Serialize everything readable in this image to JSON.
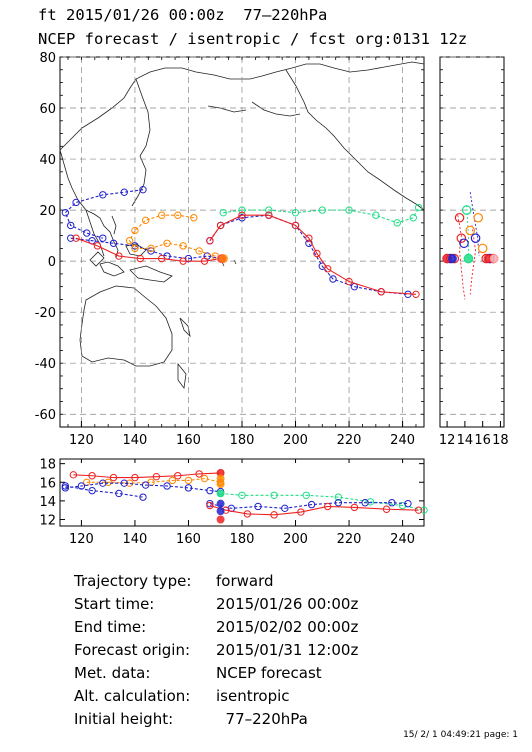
{
  "header": {
    "line1": "ft 2015/01/26 00:00z  77–220hPa",
    "line2": "NCEP forecast / isentropic / fcst org:0131 12z"
  },
  "chart_data": [
    {
      "type": "line",
      "panel": "map",
      "x_ticks": [
        120,
        140,
        160,
        180,
        200,
        220,
        240
      ],
      "y_ticks": [
        80,
        60,
        40,
        20,
        0,
        -20,
        -40,
        -60
      ],
      "xlim": [
        112,
        248
      ],
      "ylim": [
        -65,
        80
      ],
      "grid": true,
      "series": [
        {
          "color": "#2222cc",
          "style": "dashed",
          "x": [
            143,
            136,
            128,
            118,
            114,
            116,
            122,
            128
          ],
          "y": [
            28,
            27,
            26,
            23,
            19,
            14,
            11,
            9
          ]
        },
        {
          "color": "#2222cc",
          "style": "dashed",
          "x": [
            116,
            124,
            132,
            140,
            146,
            152,
            160,
            167,
            172
          ],
          "y": [
            9,
            8,
            7,
            6,
            4,
            2,
            1,
            2,
            1
          ]
        },
        {
          "color": "#ff8800",
          "style": "dashed",
          "x": [
            162,
            156,
            150,
            144,
            140,
            138,
            140,
            146,
            152,
            158,
            164,
            170,
            172
          ],
          "y": [
            17,
            18,
            18,
            16,
            12,
            8,
            5,
            5,
            7,
            6,
            4,
            2,
            1
          ]
        },
        {
          "color": "#ee2222",
          "style": "solid",
          "x": [
            118,
            126,
            134,
            142,
            150,
            158,
            166,
            172
          ],
          "y": [
            9,
            6,
            2,
            1,
            1,
            0,
            0,
            1
          ]
        },
        {
          "color": "#22dd88",
          "style": "dashed",
          "x": [
            173,
            180,
            190,
            200,
            210,
            220,
            230,
            238,
            244,
            246
          ],
          "y": [
            19,
            20,
            20,
            19,
            20,
            20,
            18,
            15,
            17,
            21
          ]
        },
        {
          "color": "#2222cc",
          "style": "dashed",
          "x": [
            168,
            172,
            180,
            190,
            200,
            205,
            210,
            214,
            222,
            232,
            242
          ],
          "y": [
            8,
            14,
            17,
            18,
            14,
            7,
            -2,
            -7,
            -10,
            -12,
            -13
          ]
        },
        {
          "color": "#ee2222",
          "style": "solid",
          "x": [
            168,
            172,
            180,
            190,
            200,
            205,
            208,
            212,
            220,
            232,
            245
          ],
          "y": [
            8,
            14,
            18,
            18,
            14,
            9,
            3,
            -3,
            -8,
            -12,
            -13
          ]
        }
      ]
    },
    {
      "type": "scatter",
      "panel": "right-side",
      "x_ticks": [
        12,
        14,
        16,
        18
      ],
      "xlim": [
        11.2,
        18.4
      ],
      "ylim": [
        -65,
        80
      ],
      "points": [
        {
          "x": 12.0,
          "y": 1,
          "color": "#ee2222"
        },
        {
          "x": 12.4,
          "y": 1,
          "color": "#2222cc"
        },
        {
          "x": 12.8,
          "y": 1,
          "color": "#ee2222"
        },
        {
          "x": 13.4,
          "y": 17,
          "color": "#ee2222"
        },
        {
          "x": 13.6,
          "y": 9,
          "color": "#ee2222"
        },
        {
          "x": 13.9,
          "y": 7,
          "color": "#2222cc"
        },
        {
          "x": 14.2,
          "y": 20,
          "color": "#22dd88"
        },
        {
          "x": 14.4,
          "y": 1,
          "color": "#22dd88"
        },
        {
          "x": 14.6,
          "y": 12,
          "color": "#ff8800"
        },
        {
          "x": 15.2,
          "y": 9,
          "color": "#2222cc"
        },
        {
          "x": 15.5,
          "y": 17,
          "color": "#ff8800"
        },
        {
          "x": 16.0,
          "y": 5,
          "color": "#ff8800"
        },
        {
          "x": 16.4,
          "y": 1,
          "color": "#ee2222"
        },
        {
          "x": 16.8,
          "y": 1,
          "color": "#2222cc"
        },
        {
          "x": 17.2,
          "y": 1,
          "color": "#ee2222"
        }
      ]
    },
    {
      "type": "line",
      "panel": "bottom-altitude",
      "x_ticks": [
        120,
        140,
        160,
        180,
        200,
        220,
        240
      ],
      "y_ticks": [
        18,
        16,
        14,
        12
      ],
      "xlim": [
        112,
        248
      ],
      "ylim": [
        11.3,
        18.5
      ],
      "series": [
        {
          "color": "#ee2222",
          "style": "solid",
          "x": [
            117,
            124,
            132,
            140,
            148,
            156,
            164,
            172
          ],
          "y": [
            16.8,
            16.7,
            16.5,
            16.5,
            16.6,
            16.7,
            16.9,
            17.0
          ]
        },
        {
          "color": "#ff8800",
          "style": "dashed",
          "x": [
            122,
            130,
            138,
            146,
            154,
            160,
            166,
            172
          ],
          "y": [
            16.0,
            16.0,
            15.9,
            16.0,
            16.2,
            16.2,
            16.4,
            16.0
          ]
        },
        {
          "color": "#2222cc",
          "style": "dashed",
          "x": [
            114,
            120,
            128,
            136,
            144,
            152,
            160,
            168,
            172
          ],
          "y": [
            15.4,
            15.6,
            15.9,
            15.9,
            15.7,
            15.6,
            15.4,
            15.1,
            15.0
          ]
        },
        {
          "color": "#2222cc",
          "style": "dashed",
          "x": [
            114,
            124,
            134,
            143
          ],
          "y": [
            15.6,
            15.1,
            14.8,
            14.4
          ]
        },
        {
          "color": "#22dd88",
          "style": "dashed",
          "x": [
            172,
            180,
            192,
            204,
            216,
            228,
            240,
            248
          ],
          "y": [
            14.8,
            14.6,
            14.6,
            14.6,
            14.4,
            13.9,
            13.5,
            13.0
          ]
        },
        {
          "color": "#2222cc",
          "style": "dashed",
          "x": [
            168,
            176,
            186,
            196,
            206,
            216,
            226,
            236,
            242
          ],
          "y": [
            13.7,
            13.2,
            13.4,
            13.2,
            13.6,
            13.8,
            13.8,
            13.8,
            13.7
          ]
        },
        {
          "color": "#ee2222",
          "style": "solid",
          "x": [
            168,
            174,
            182,
            192,
            202,
            212,
            222,
            234,
            246
          ],
          "y": [
            13.5,
            13.0,
            12.6,
            12.5,
            12.8,
            13.4,
            13.3,
            13.1,
            13.0
          ]
        }
      ]
    }
  ],
  "info": {
    "rows": [
      {
        "label": "Trajectory type:",
        "value": "forward"
      },
      {
        "label": "Start time:",
        "value": "2015/01/26 00:00z"
      },
      {
        "label": "End time:",
        "value": "2015/02/02 00:00z"
      },
      {
        "label": "Forecast origin:",
        "value": "2015/01/31 12:00z"
      },
      {
        "label": "Met. data:",
        "value": "NCEP forecast"
      },
      {
        "label": "Alt. calculation:",
        "value": "isentropic"
      },
      {
        "label": "Initial height:",
        "value": "  77–220hPa"
      }
    ]
  },
  "footer": "15/ 2/ 1 04:49:21 page: 1"
}
